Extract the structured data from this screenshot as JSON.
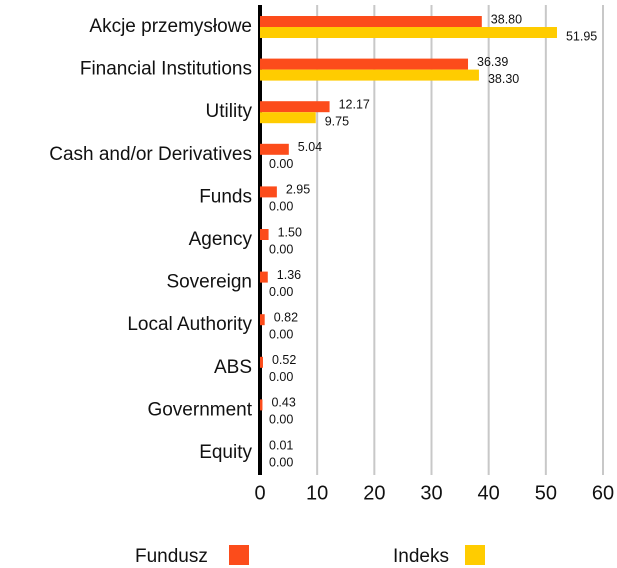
{
  "chart_data": {
    "type": "bar",
    "orientation": "horizontal",
    "categories": [
      "Akcje przemysłowe",
      "Financial Institutions",
      "Utility",
      "Cash and/or Derivatives",
      "Funds",
      "Agency",
      "Sovereign",
      "Local Authority",
      "ABS",
      "Government",
      "Equity"
    ],
    "series": [
      {
        "name": "Fundusz",
        "color": "#fc4c1b",
        "values": [
          38.8,
          36.39,
          12.17,
          5.04,
          2.95,
          1.5,
          1.36,
          0.82,
          0.52,
          0.43,
          0.01
        ],
        "value_labels": [
          "38.80",
          "36.39",
          "12.17",
          "5.04",
          "2.95",
          "1.50",
          "1.36",
          "0.82",
          "0.52",
          "0.43",
          "0.01"
        ]
      },
      {
        "name": "Indeks",
        "color": "#ffcc00",
        "values": [
          51.95,
          38.3,
          9.75,
          0,
          0,
          0,
          0,
          0,
          0,
          0,
          0
        ],
        "value_labels": [
          "51.95",
          "38.30",
          "9.75",
          "0.00",
          "0.00",
          "0.00",
          "0.00",
          "0.00",
          "0.00",
          "0.00",
          "0.00"
        ]
      }
    ],
    "xlim": [
      0,
      60
    ],
    "xticks": [
      0,
      10,
      20,
      30,
      40,
      50,
      60
    ],
    "grid": true
  }
}
